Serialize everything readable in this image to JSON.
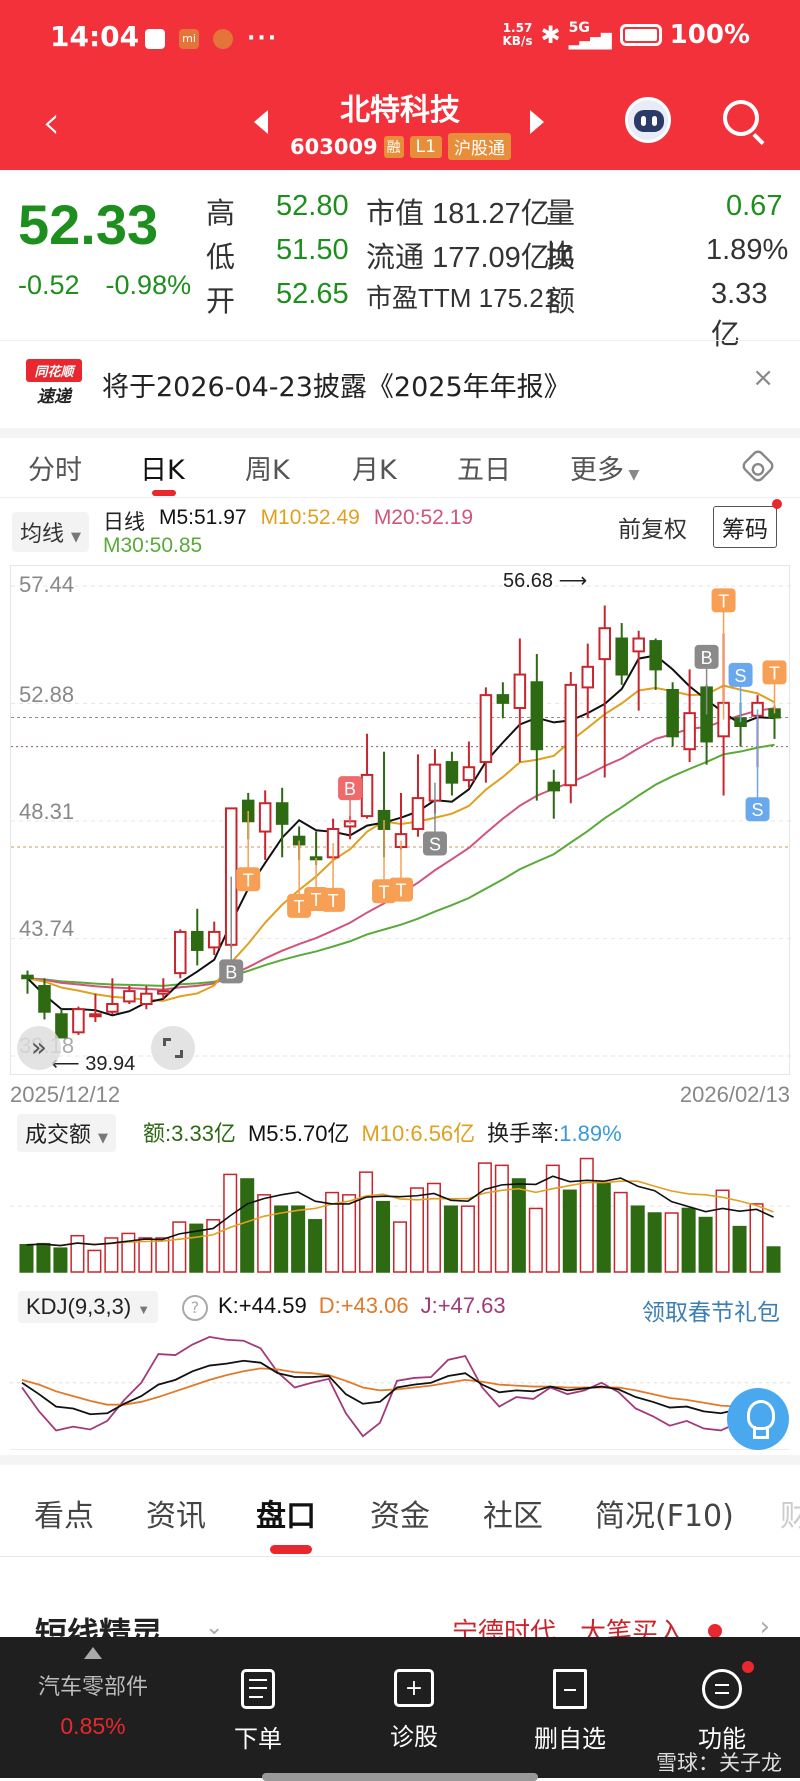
{
  "status_bar": {
    "time": "14:04",
    "net_speed_value": "1.57",
    "net_speed_unit": "KB/s",
    "network": "5G",
    "battery": "100%"
  },
  "header": {
    "stock_name": "北特科技",
    "stock_code": "603009",
    "tags": [
      "融",
      "L1",
      "沪股通"
    ]
  },
  "quote": {
    "price": "52.33",
    "change": "-0.52",
    "change_pct": "-0.98%",
    "rows": [
      {
        "l1": "高",
        "v1": "52.80",
        "l2": "市值",
        "v2": "181.27亿",
        "l3": "量比",
        "v3": "0.67"
      },
      {
        "l1": "低",
        "v1": "51.50",
        "l2": "流通",
        "v2": "177.09亿",
        "l3": "换",
        "v3": "1.89%"
      },
      {
        "l1": "开",
        "v1": "52.65",
        "l2": "市盈TTM",
        "v2": "175.21",
        "l3": "额",
        "v3": "3.33亿"
      }
    ]
  },
  "notice": {
    "logo_top": "同花顺",
    "logo_bottom": "速递",
    "text": "将于2026-04-23披露《2025年年报》",
    "close": "×"
  },
  "periods": [
    "分时",
    "日K",
    "周K",
    "月K",
    "五日",
    "更多"
  ],
  "active_period": "日K",
  "ma_legend": {
    "button": "均线",
    "type": "日线",
    "m5": "M5:51.97",
    "m10": "M10:52.49",
    "m20": "M20:52.19",
    "m30": "M30:50.85",
    "adjust": "前复权",
    "chips": "筹码"
  },
  "colors": {
    "up": "#c8262c",
    "down": "#2d6a12",
    "m5": "#111111",
    "m10": "#e0a020",
    "m20": "#d0557a",
    "m30": "#5aaa3a",
    "accent": "#f2313a"
  },
  "chart_data": {
    "type": "candlestick",
    "title": "北特科技 603009 日K",
    "y_ticks": [
      "57.44",
      "52.88",
      "48.31",
      "43.74",
      "39.18"
    ],
    "ylim": [
      39.18,
      57.44
    ],
    "x_start": "2025/12/12",
    "x_end": "2026/02/13",
    "max_label": "56.68",
    "min_label": "39.94",
    "candles": [
      {
        "o": 42.3,
        "c": 42.2,
        "h": 42.5,
        "l": 41.6
      },
      {
        "o": 41.9,
        "c": 40.9,
        "h": 42.2,
        "l": 40.6
      },
      {
        "o": 40.8,
        "c": 39.9,
        "h": 41.0,
        "l": 39.94
      },
      {
        "o": 40.1,
        "c": 41.0,
        "h": 41.1,
        "l": 40.0
      },
      {
        "o": 40.8,
        "c": 40.8,
        "h": 41.6,
        "l": 40.5
      },
      {
        "o": 40.9,
        "c": 41.2,
        "h": 42.2,
        "l": 40.8
      },
      {
        "o": 41.3,
        "c": 41.7,
        "h": 41.9,
        "l": 41.2
      },
      {
        "o": 41.2,
        "c": 41.6,
        "h": 41.9,
        "l": 41.0
      },
      {
        "o": 41.6,
        "c": 41.7,
        "h": 42.2,
        "l": 41.4
      },
      {
        "o": 42.4,
        "c": 44.0,
        "h": 44.1,
        "l": 42.2
      },
      {
        "o": 44.0,
        "c": 43.3,
        "h": 44.9,
        "l": 42.7
      },
      {
        "o": 43.4,
        "c": 44.0,
        "h": 44.4,
        "l": 43.1
      },
      {
        "o": 43.5,
        "c": 48.8,
        "h": 48.8,
        "l": 43.4
      },
      {
        "o": 49.1,
        "c": 48.3,
        "h": 49.4,
        "l": 47.6
      },
      {
        "o": 47.9,
        "c": 49.0,
        "h": 49.5,
        "l": 46.8
      },
      {
        "o": 49.0,
        "c": 48.2,
        "h": 49.6,
        "l": 46.9
      },
      {
        "o": 47.7,
        "c": 47.4,
        "h": 48.1,
        "l": 46.8
      },
      {
        "o": 46.9,
        "c": 46.85,
        "h": 47.9,
        "l": 46.6
      },
      {
        "o": 46.9,
        "c": 48.0,
        "h": 48.4,
        "l": 46.8
      },
      {
        "o": 48.1,
        "c": 48.3,
        "h": 48.5,
        "l": 47.6
      },
      {
        "o": 48.5,
        "c": 50.1,
        "h": 51.7,
        "l": 48.4
      },
      {
        "o": 48.7,
        "c": 48.0,
        "h": 51.0,
        "l": 46.9
      },
      {
        "o": 47.3,
        "c": 47.8,
        "h": 49.4,
        "l": 47.2
      },
      {
        "o": 48.0,
        "c": 49.2,
        "h": 50.9,
        "l": 47.7
      },
      {
        "o": 49.1,
        "c": 50.5,
        "h": 51.1,
        "l": 48.6
      },
      {
        "o": 50.6,
        "c": 49.8,
        "h": 51.0,
        "l": 49.3
      },
      {
        "o": 49.9,
        "c": 50.4,
        "h": 51.4,
        "l": 49.6
      },
      {
        "o": 50.6,
        "c": 53.2,
        "h": 53.5,
        "l": 49.8
      },
      {
        "o": 53.2,
        "c": 52.9,
        "h": 53.7,
        "l": 52.3
      },
      {
        "o": 52.7,
        "c": 54.0,
        "h": 55.4,
        "l": 50.6
      },
      {
        "o": 53.7,
        "c": 51.1,
        "h": 54.8,
        "l": 49.1
      },
      {
        "o": 49.8,
        "c": 49.5,
        "h": 50.3,
        "l": 48.4
      },
      {
        "o": 49.7,
        "c": 53.6,
        "h": 54.1,
        "l": 49.0
      },
      {
        "o": 53.5,
        "c": 54.3,
        "h": 55.2,
        "l": 52.3
      },
      {
        "o": 54.6,
        "c": 55.8,
        "h": 56.68,
        "l": 50.0
      },
      {
        "o": 55.4,
        "c": 54.0,
        "h": 56.0,
        "l": 53.6
      },
      {
        "o": 54.9,
        "c": 55.4,
        "h": 55.7,
        "l": 52.6
      },
      {
        "o": 55.3,
        "c": 54.2,
        "h": 55.4,
        "l": 53.4
      },
      {
        "o": 53.4,
        "c": 51.6,
        "h": 53.7,
        "l": 51.2
      },
      {
        "o": 51.1,
        "c": 52.5,
        "h": 54.2,
        "l": 50.6
      },
      {
        "o": 53.5,
        "c": 51.4,
        "h": 53.6,
        "l": 50.5
      },
      {
        "o": 51.6,
        "c": 52.9,
        "h": 55.6,
        "l": 49.3
      },
      {
        "o": 52.3,
        "c": 52.0,
        "h": 52.9,
        "l": 51.2
      },
      {
        "o": 52.4,
        "c": 52.9,
        "h": 53.2,
        "l": 50.4
      },
      {
        "o": 52.65,
        "c": 52.33,
        "h": 52.8,
        "l": 51.5
      }
    ],
    "series": [
      {
        "name": "M5",
        "value_label": "51.97"
      },
      {
        "name": "M10",
        "value_label": "52.49"
      },
      {
        "name": "M20",
        "value_label": "52.19"
      },
      {
        "name": "M30",
        "value_label": "50.85"
      }
    ],
    "signals": [
      {
        "index": 12,
        "label": "B",
        "kind": "gray"
      },
      {
        "index": 13,
        "label": "T",
        "kind": "orange"
      },
      {
        "index": 16,
        "label": "T",
        "kind": "orange"
      },
      {
        "index": 17,
        "label": "T",
        "kind": "orange"
      },
      {
        "index": 18,
        "label": "T",
        "kind": "orange"
      },
      {
        "index": 19,
        "label": "B",
        "kind": "red"
      },
      {
        "index": 21,
        "label": "T",
        "kind": "orange"
      },
      {
        "index": 22,
        "label": "T",
        "kind": "orange"
      },
      {
        "index": 24,
        "label": "S",
        "kind": "gray"
      },
      {
        "index": 40,
        "label": "B",
        "kind": "gray"
      },
      {
        "index": 41,
        "label": "T",
        "kind": "orange"
      },
      {
        "index": 42,
        "label": "S",
        "kind": "blue"
      },
      {
        "index": 43,
        "label": "S",
        "kind": "blue"
      },
      {
        "index": 44,
        "label": "T",
        "kind": "orange"
      }
    ],
    "volume": {
      "ylabel": "成交额",
      "values": [
        1.2,
        1.25,
        1.05,
        1.6,
        0.95,
        1.5,
        1.7,
        1.5,
        1.5,
        2.2,
        2.1,
        2.3,
        4.3,
        4.1,
        3.4,
        2.9,
        2.9,
        2.3,
        3.5,
        3.4,
        4.4,
        3.1,
        2.2,
        3.7,
        3.9,
        2.9,
        2.9,
        4.8,
        4.7,
        4.1,
        2.8,
        4.7,
        3.6,
        5.0,
        3.9,
        3.5,
        2.9,
        2.6,
        2.6,
        2.8,
        2.4,
        3.6,
        2.0,
        3.0,
        1.1
      ],
      "up": [
        false,
        false,
        false,
        true,
        true,
        true,
        true,
        true,
        true,
        true,
        false,
        true,
        true,
        false,
        true,
        false,
        false,
        false,
        true,
        true,
        true,
        false,
        true,
        true,
        true,
        false,
        true,
        true,
        true,
        false,
        true,
        true,
        false,
        true,
        false,
        true,
        false,
        false,
        true,
        false,
        false,
        true,
        false,
        true,
        false
      ]
    },
    "kdj": {
      "k": "44.59",
      "d": "43.06",
      "j": "47.63"
    }
  },
  "volume_legend": {
    "button": "成交额",
    "amount": "额:3.33亿",
    "m5": "M5:5.70亿",
    "m10": "M10:6.56亿",
    "turnover_label": "换手率:",
    "turnover": "1.89%"
  },
  "kdj_legend": {
    "button": "KDJ(9,3,3)",
    "help": "?",
    "k": "K:+44.59",
    "d": "D:+43.06",
    "j": "J:+47.63",
    "promo": "领取春节礼包"
  },
  "tabs": [
    "看点",
    "资讯",
    "盘口",
    "资金",
    "社区",
    "简况(F10)",
    "财"
  ],
  "active_tab": "盘口",
  "short_section": {
    "title": "短线精灵",
    "stock": "宁德时代",
    "event": "大笔买入"
  },
  "bottom_bar": {
    "sector_name": "汽车零部件",
    "sector_pct": "0.85%",
    "buttons": [
      "下单",
      "诊股",
      "删自选",
      "功能"
    ],
    "watermark": "雪球：关子龙"
  }
}
